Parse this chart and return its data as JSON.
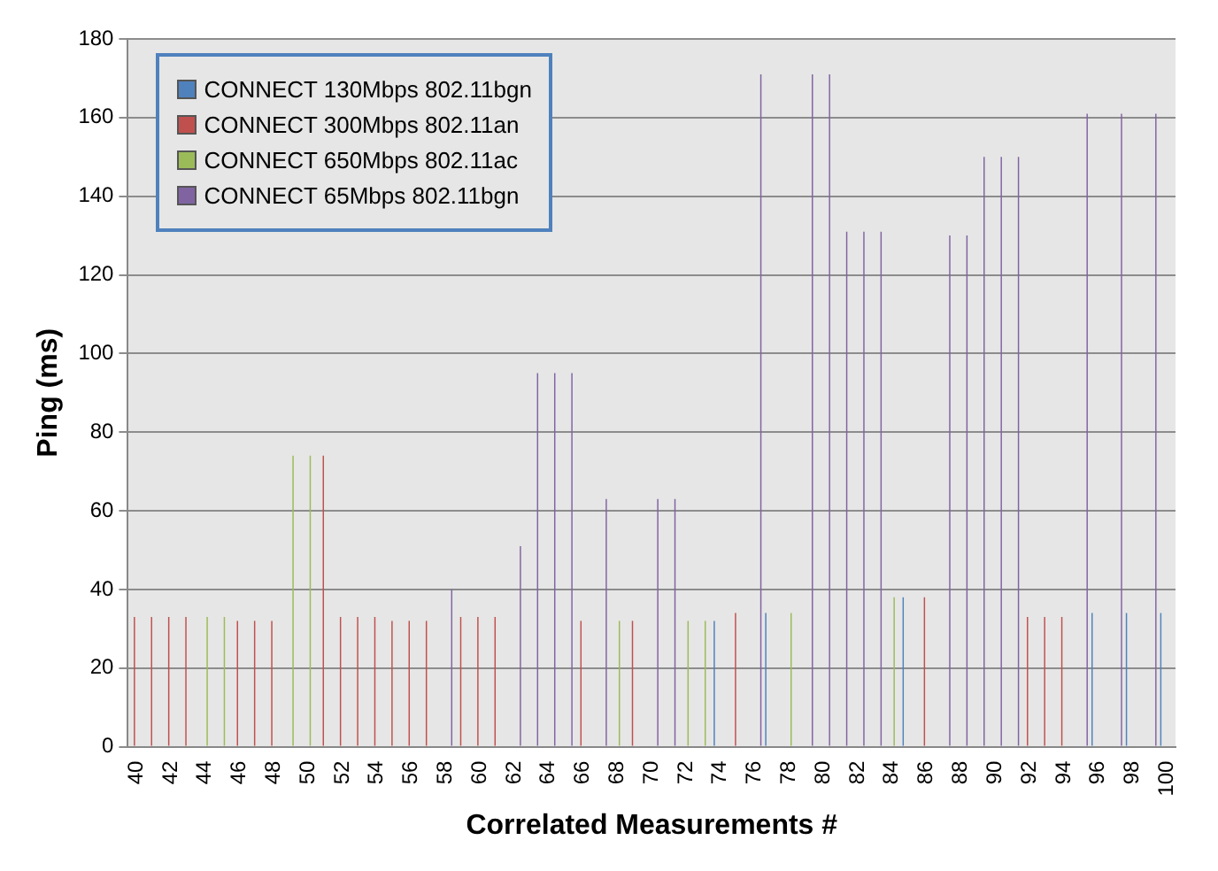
{
  "chart_data": {
    "type": "bar",
    "xlabel": "Correlated Measurements #",
    "ylabel": "Ping (ms)",
    "categories": [
      "40",
      null,
      "42",
      null,
      "44",
      null,
      "46",
      null,
      "48",
      null,
      "50",
      null,
      "52",
      null,
      "54",
      null,
      "56",
      null,
      "58",
      null,
      "60",
      null,
      "62",
      null,
      "64",
      null,
      "66",
      null,
      "68",
      null,
      "70",
      null,
      "72",
      null,
      "74",
      null,
      "76",
      null,
      "78",
      null,
      "80",
      null,
      "82",
      null,
      "84",
      null,
      "86",
      null,
      "88",
      null,
      "90",
      null,
      "92",
      null,
      "94",
      null,
      "96",
      null,
      "98",
      null,
      "100"
    ],
    "series": [
      {
        "name": "CONNECT 130Mbps 802.11bgn",
        "color": "#4f81bd",
        "values": [
          null,
          null,
          null,
          null,
          null,
          null,
          null,
          null,
          null,
          null,
          null,
          null,
          null,
          null,
          null,
          null,
          null,
          null,
          null,
          null,
          null,
          null,
          null,
          null,
          null,
          null,
          null,
          null,
          null,
          null,
          null,
          null,
          null,
          null,
          32,
          null,
          null,
          34,
          null,
          null,
          null,
          null,
          null,
          null,
          null,
          38,
          null,
          null,
          null,
          null,
          null,
          null,
          null,
          null,
          null,
          null,
          34,
          null,
          34,
          null,
          34
        ]
      },
      {
        "name": "CONNECT 300Mbps 802.11an",
        "color": "#c0504d",
        "values": [
          33,
          33,
          33,
          33,
          null,
          null,
          32,
          32,
          32,
          null,
          null,
          74,
          33,
          33,
          33,
          32,
          32,
          32,
          null,
          33,
          33,
          33,
          null,
          null,
          null,
          null,
          32,
          null,
          null,
          32,
          null,
          null,
          null,
          null,
          null,
          34,
          null,
          null,
          null,
          null,
          null,
          null,
          null,
          null,
          null,
          null,
          38,
          null,
          null,
          null,
          null,
          null,
          33,
          33,
          33,
          null,
          null,
          null,
          null,
          null,
          null
        ]
      },
      {
        "name": "CONNECT 650Mbps 802.11ac",
        "color": "#9bbb59",
        "values": [
          null,
          null,
          null,
          null,
          33,
          33,
          null,
          null,
          null,
          74,
          74,
          null,
          null,
          null,
          null,
          null,
          null,
          null,
          null,
          null,
          null,
          null,
          null,
          null,
          null,
          null,
          null,
          null,
          32,
          null,
          null,
          null,
          32,
          32,
          null,
          null,
          null,
          null,
          34,
          null,
          null,
          null,
          null,
          null,
          38,
          null,
          null,
          null,
          null,
          null,
          null,
          null,
          null,
          null,
          null,
          null,
          null,
          null,
          null,
          null,
          null
        ]
      },
      {
        "name": "CONNECT 65Mbps 802.11bgn",
        "color": "#8064a2",
        "values": [
          null,
          null,
          null,
          null,
          null,
          null,
          null,
          null,
          null,
          null,
          null,
          null,
          null,
          null,
          null,
          null,
          null,
          null,
          40,
          null,
          null,
          null,
          51,
          95,
          95,
          95,
          null,
          63,
          null,
          null,
          63,
          63,
          null,
          null,
          null,
          null,
          171,
          null,
          null,
          171,
          171,
          131,
          131,
          131,
          null,
          null,
          null,
          130,
          130,
          150,
          150,
          150,
          null,
          null,
          null,
          161,
          null,
          161,
          null,
          161,
          null
        ]
      }
    ],
    "ylim": [
      0,
      180
    ],
    "yticks": [
      0,
      20,
      40,
      60,
      80,
      100,
      120,
      140,
      160,
      180
    ],
    "grid": "y",
    "legend": "top left"
  }
}
